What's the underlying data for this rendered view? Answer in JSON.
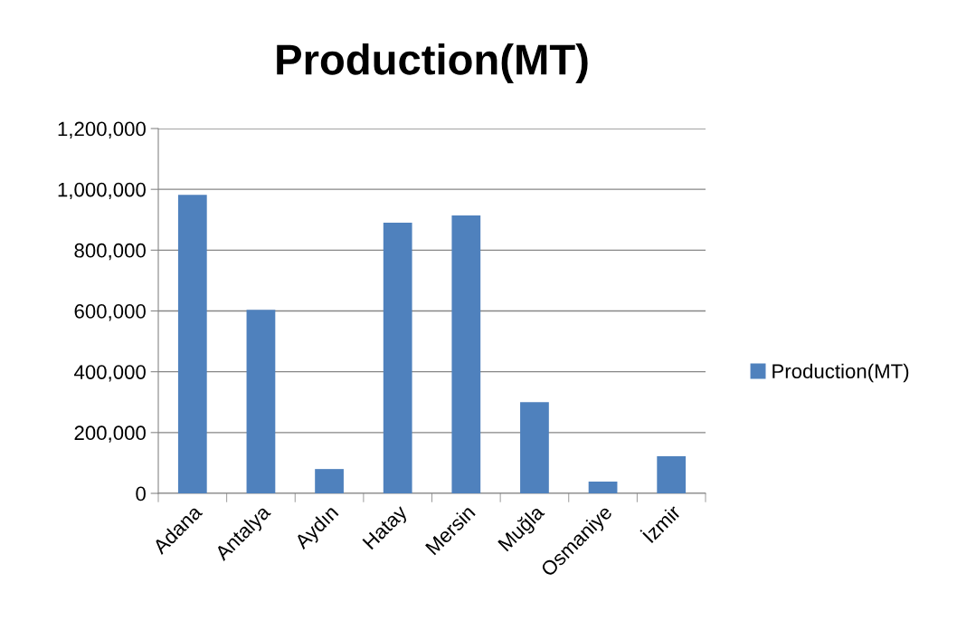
{
  "chart_data": {
    "type": "bar",
    "title": "Production(MT)",
    "categories": [
      "Adana",
      "Antalya",
      "Aydın",
      "Hatay",
      "Mersin",
      "Muğla",
      "Osmaniye",
      "İzmir"
    ],
    "series": [
      {
        "name": "Production(MT)",
        "color": "#4f81bd",
        "values": [
          982000,
          604000,
          80000,
          890000,
          914000,
          300000,
          39000,
          122000
        ]
      }
    ],
    "ylim": [
      0,
      1200000
    ],
    "yticks": [
      {
        "value": 0,
        "label": "0"
      },
      {
        "value": 200000,
        "label": "200,000"
      },
      {
        "value": 400000,
        "label": "400,000"
      },
      {
        "value": 600000,
        "label": "600,000"
      },
      {
        "value": 800000,
        "label": "800,000"
      },
      {
        "value": 1000000,
        "label": "1,000,000"
      },
      {
        "value": 1200000,
        "label": "1,200,000"
      }
    ],
    "grid": "y",
    "legend": "right"
  }
}
